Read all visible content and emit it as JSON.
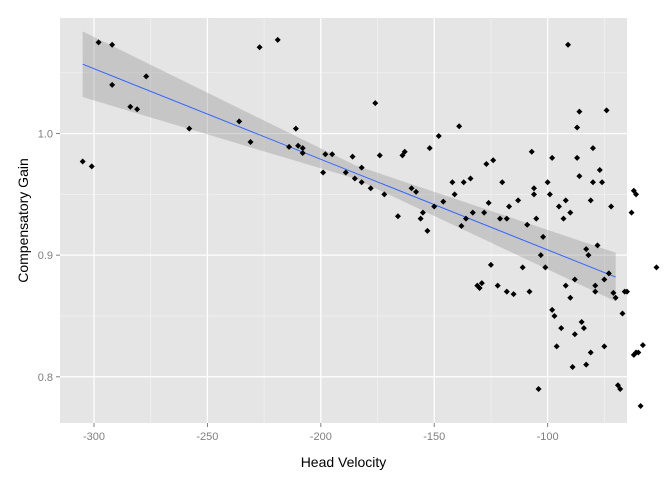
{
  "chart_data": {
    "type": "scatter",
    "xlabel": "Head Velocity",
    "ylabel": "Compensatory Gain",
    "xlim": [
      -315,
      -65
    ],
    "ylim": [
      0.762,
      1.095
    ],
    "x_ticks": [
      -300,
      -250,
      -200,
      -150,
      -100
    ],
    "y_ticks": [
      0.8,
      0.9,
      1.0
    ],
    "x_tick_labels": [
      "-300",
      "-250",
      "-200",
      "-150",
      "-100"
    ],
    "y_tick_labels": [
      "0.8",
      "0.9",
      "1.0"
    ],
    "grid": true,
    "legend": "none",
    "colors": {
      "panel": "#e5e5e5",
      "grid_major": "#ffffff",
      "grid_minor": "#f2f2f2",
      "points": "#000000",
      "fit_line": "#3366ff",
      "confidence_band": "#999999"
    },
    "fit": {
      "method": "linear",
      "x": [
        -305,
        -70
      ],
      "y": [
        1.057,
        0.882
      ],
      "ci_lower": [
        1.03,
        0.862
      ],
      "ci_upper": [
        1.084,
        0.902
      ],
      "ci_mid": {
        "x": -185,
        "lower": 0.963,
        "upper": 0.974
      }
    },
    "points": [
      [
        -305,
        0.977
      ],
      [
        -301,
        0.973
      ],
      [
        -298,
        1.075
      ],
      [
        -292,
        1.073
      ],
      [
        -292,
        1.04
      ],
      [
        -284,
        1.022
      ],
      [
        -281,
        1.02
      ],
      [
        -277,
        1.047
      ],
      [
        -258,
        1.004
      ],
      [
        -236,
        1.01
      ],
      [
        -231,
        0.993
      ],
      [
        -227,
        1.071
      ],
      [
        -219,
        1.077
      ],
      [
        -214,
        0.989
      ],
      [
        -211,
        1.004
      ],
      [
        -210,
        0.99
      ],
      [
        -208,
        0.984
      ],
      [
        -208,
        0.988
      ],
      [
        -199,
        0.968
      ],
      [
        -198,
        0.983
      ],
      [
        -195,
        0.983
      ],
      [
        -189,
        0.968
      ],
      [
        -186,
        0.981
      ],
      [
        -185,
        0.963
      ],
      [
        -182,
        0.96
      ],
      [
        -182,
        0.972
      ],
      [
        -178,
        0.955
      ],
      [
        -176,
        1.025
      ],
      [
        -174,
        0.982
      ],
      [
        -172,
        0.95
      ],
      [
        -166,
        0.932
      ],
      [
        -164,
        0.982
      ],
      [
        -163,
        0.985
      ],
      [
        -160,
        0.955
      ],
      [
        -158,
        0.952
      ],
      [
        -156,
        0.93
      ],
      [
        -155,
        0.935
      ],
      [
        -153,
        0.92
      ],
      [
        -152,
        0.988
      ],
      [
        -150,
        0.94
      ],
      [
        -148,
        0.998
      ],
      [
        -146,
        0.944
      ],
      [
        -142,
        0.96
      ],
      [
        -141,
        0.95
      ],
      [
        -139,
        1.006
      ],
      [
        -138,
        0.924
      ],
      [
        -137,
        0.96
      ],
      [
        -136,
        0.93
      ],
      [
        -134,
        0.963
      ],
      [
        -133,
        0.935
      ],
      [
        -131,
        0.875
      ],
      [
        -130,
        0.873
      ],
      [
        -129,
        0.877
      ],
      [
        -128,
        0.935
      ],
      [
        -127,
        0.975
      ],
      [
        -126,
        0.943
      ],
      [
        -125,
        0.892
      ],
      [
        -124,
        0.978
      ],
      [
        -122,
        0.875
      ],
      [
        -121,
        0.93
      ],
      [
        -120,
        0.96
      ],
      [
        -118,
        0.87
      ],
      [
        -118,
        0.93
      ],
      [
        -117,
        0.94
      ],
      [
        -115,
        0.868
      ],
      [
        -113,
        0.945
      ],
      [
        -111,
        0.89
      ],
      [
        -109,
        0.925
      ],
      [
        -108,
        0.87
      ],
      [
        -107,
        0.985
      ],
      [
        -106,
        0.955
      ],
      [
        -106,
        0.95
      ],
      [
        -105,
        0.93
      ],
      [
        -104,
        0.79
      ],
      [
        -103,
        0.9
      ],
      [
        -102,
        0.915
      ],
      [
        -101,
        0.89
      ],
      [
        -100,
        0.96
      ],
      [
        -99,
        0.95
      ],
      [
        -98,
        0.98
      ],
      [
        -98,
        0.855
      ],
      [
        -97,
        0.85
      ],
      [
        -96,
        0.825
      ],
      [
        -95,
        0.94
      ],
      [
        -94,
        0.84
      ],
      [
        -93,
        0.93
      ],
      [
        -92,
        0.945
      ],
      [
        -92,
        0.875
      ],
      [
        -91,
        1.073
      ],
      [
        -90,
        0.935
      ],
      [
        -90,
        0.865
      ],
      [
        -89,
        0.808
      ],
      [
        -88,
        0.88
      ],
      [
        -88,
        0.835
      ],
      [
        -87,
        1.005
      ],
      [
        -87,
        0.98
      ],
      [
        -86,
        1.018
      ],
      [
        -86,
        0.965
      ],
      [
        -85,
        0.845
      ],
      [
        -84,
        0.84
      ],
      [
        -83,
        0.905
      ],
      [
        -83,
        0.81
      ],
      [
        -82,
        0.9
      ],
      [
        -81,
        0.82
      ],
      [
        -81,
        0.945
      ],
      [
        -80,
        0.988
      ],
      [
        -80,
        0.96
      ],
      [
        -79,
        0.875
      ],
      [
        -79,
        0.87
      ],
      [
        -78,
        0.908
      ],
      [
        -77,
        0.97
      ],
      [
        -76,
        0.96
      ],
      [
        -75,
        0.88
      ],
      [
        -75,
        0.825
      ],
      [
        -74,
        1.019
      ],
      [
        -73,
        0.885
      ],
      [
        -72,
        0.94
      ],
      [
        -71,
        0.869
      ],
      [
        -70,
        0.865
      ],
      [
        -69,
        0.793
      ],
      [
        -68,
        0.79
      ],
      [
        -67,
        0.852
      ],
      [
        -66,
        0.87
      ],
      [
        -65,
        0.87
      ],
      [
        -63,
        0.935
      ],
      [
        -62,
        0.953
      ],
      [
        -62,
        0.818
      ],
      [
        -61,
        0.95
      ],
      [
        -61,
        0.82
      ],
      [
        -60,
        0.82
      ],
      [
        -59,
        0.776
      ],
      [
        -58,
        0.826
      ],
      [
        -52,
        0.89
      ]
    ]
  }
}
